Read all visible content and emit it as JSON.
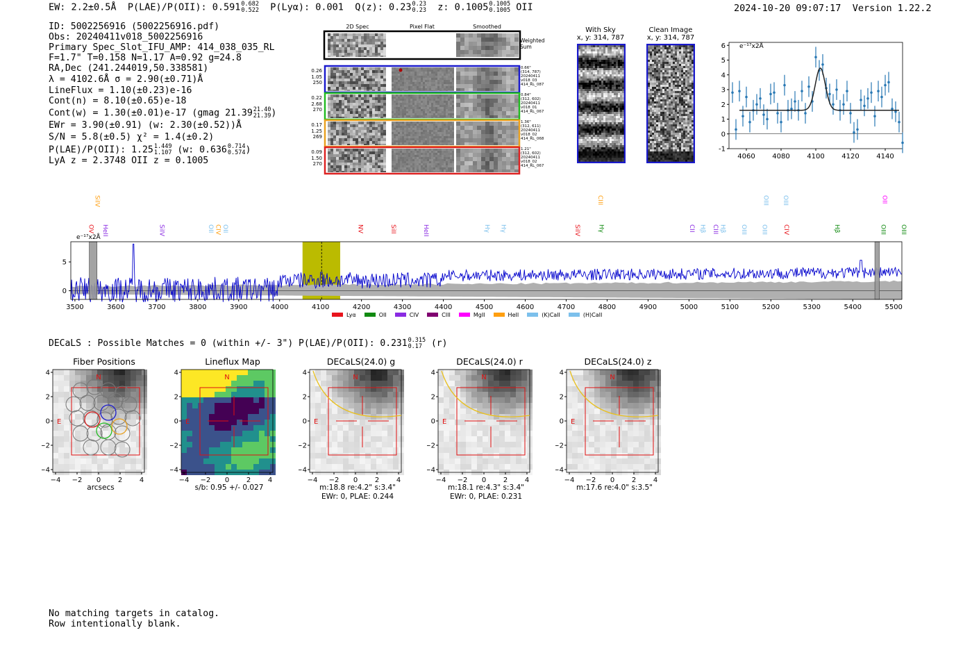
{
  "header": {
    "ew": "EW: 2.2±0.5Å",
    "plae_label": "P(LAE)/P(OII):",
    "plae": "0.591",
    "plae_hi": "0.682",
    "plae_lo": "0.522",
    "plya": "P(Lyα): 0.001",
    "q_label": "Q(z):",
    "q": "0.23",
    "q_hi": "0.23",
    "q_lo": "0.23",
    "z_label": "z:",
    "z": "0.1005",
    "z_hi": "0.1005",
    "z_lo": "0.1005",
    "z_line": "OII",
    "datetime": "2024-10-20 09:07:17",
    "version": "Version 1.22.2"
  },
  "info": {
    "id": "ID: 5002256916 (5002256916.pdf)",
    "obs": "Obs: 20240411v018_5002256916",
    "primary": "Primary Spec_Slot_IFU_AMP: 414_038_035_RL",
    "params": "F=1.7\"  T=0.158  N=1.17  A=0.92  g=24.8",
    "radec": "RA,Dec (241.244019,50.338581)",
    "lambda": "λ = 4102.6Å   σ = 2.90(±0.71)Å",
    "lineflux": "LineFlux = 1.10(±0.23)e-16",
    "contn": "Cont(n) = 8.10(±0.65)e-18",
    "contw": "Cont(w) = 1.30(±0.01)e-17 (gmag 21.39",
    "contw_hi": "21.40",
    "contw_lo": "21.39",
    "contw_end": ")",
    "ewr": "EWr = 3.90(±0.91) (w: 2.30(±0.52))Å",
    "sn": "S/N = 5.8(±0.5)  χ² = 1.4(±0.2)",
    "plae2": "P(LAE)/P(OII): 1.25",
    "plae2_hi": "1.449",
    "plae2_lo": "1.107",
    "plae2_w": "(w: 0.636",
    "plae2_w_hi": "0.714",
    "plae2_w_lo": "0.574",
    "plae2_end": ")",
    "lyaz": "LyA z = 2.3748   OII z = 0.1005"
  },
  "cutouts": {
    "col1": "2D Spec",
    "col2": "Pixel Flat",
    "col3": "Smoothed",
    "weighted": "Weighted Sum",
    "rows": [
      {
        "color": "#1a1acc",
        "left": [
          "0.26",
          "1.05",
          "250"
        ],
        "right": [
          "0.66\"",
          "(314, 787)",
          "20240411",
          "v018_03",
          "414_RL_087"
        ]
      },
      {
        "color": "#22bb22",
        "left": [
          "0.22",
          "2.68",
          "270"
        ],
        "right": [
          "0.84\"",
          "(312, 602)",
          "20240411",
          "v018_01",
          "414_RL_067"
        ]
      },
      {
        "color": "#e8a020",
        "left": [
          "0.17",
          "1.25",
          "269"
        ],
        "right": [
          "1.36\"",
          "(312, 611)",
          "20240411",
          "v018_02",
          "414_RL_068"
        ]
      },
      {
        "color": "#dd2222",
        "left": [
          "0.09",
          "1.50",
          "270"
        ],
        "right": [
          "1.21\"",
          "(312, 602)",
          "20240411",
          "v018_02",
          "414_RL_067"
        ]
      }
    ]
  },
  "sky": {
    "with_sky_title": "With Sky",
    "with_sky_xy": "x, y: 314, 787",
    "clean_title": "Clean Image",
    "clean_xy": "x, y: 314, 787"
  },
  "zoom_chart": {
    "ylabel": "e⁻¹⁷x2Å",
    "yticks": [
      "-1",
      "0",
      "1",
      "2",
      "3",
      "4",
      "5",
      "6"
    ],
    "xticks": [
      "4060",
      "4080",
      "4100",
      "4120",
      "4140"
    ]
  },
  "full_spectrum": {
    "ylabel": "e⁻¹⁷x2Å",
    "yticks": [
      "0",
      "5"
    ],
    "xticks": [
      "3500",
      "3600",
      "3700",
      "3800",
      "3900",
      "4000",
      "4100",
      "4200",
      "4300",
      "4400",
      "4500",
      "4600",
      "4700",
      "4800",
      "4900",
      "5000",
      "5100",
      "5200",
      "5300",
      "5400",
      "5500"
    ],
    "legend": [
      {
        "label": "Lyα",
        "color": "#e8141c"
      },
      {
        "label": "OII",
        "color": "#108a10"
      },
      {
        "label": "CIV",
        "color": "#8a2be2"
      },
      {
        "label": "CIII",
        "color": "#800070"
      },
      {
        "label": "MgII",
        "color": "#ff00ff"
      },
      {
        "label": "HeII",
        "color": "#ff9f10"
      },
      {
        "label": "(K)CaII",
        "color": "#7cc0ec"
      },
      {
        "label": "(H)CaII",
        "color": "#7cc0ec"
      }
    ],
    "line_labels": [
      {
        "text": "OVI",
        "color": "#e8141c",
        "w": 3530,
        "row": 2
      },
      {
        "text": "HeII",
        "color": "#8a2be2",
        "w": 3565,
        "row": 2
      },
      {
        "text": "SiIV",
        "color": "#ff9f10",
        "w": 3545,
        "row": 0
      },
      {
        "text": "SiIV",
        "color": "#8a2be2",
        "w": 3703,
        "row": 2
      },
      {
        "text": "OII",
        "color": "#7cc0ec",
        "w": 3822,
        "row": 2
      },
      {
        "text": "CIV",
        "color": "#ff9f10",
        "w": 3840,
        "row": 2
      },
      {
        "text": "OII",
        "color": "#7cc0ec",
        "w": 3858,
        "row": 2
      },
      {
        "text": "NV",
        "color": "#e8141c",
        "w": 4188,
        "row": 2
      },
      {
        "text": "SiII",
        "color": "#e8141c",
        "w": 4268,
        "row": 2
      },
      {
        "text": "HeII",
        "color": "#8a2be2",
        "w": 4348,
        "row": 2
      },
      {
        "text": "Hγ",
        "color": "#7cc0ec",
        "w": 4497,
        "row": 2
      },
      {
        "text": "Hγ",
        "color": "#7cc0ec",
        "w": 4537,
        "row": 2
      },
      {
        "text": "SiIV",
        "color": "#e8141c",
        "w": 4718,
        "row": 2
      },
      {
        "text": "CIII",
        "color": "#ff9f10",
        "w": 4774,
        "row": 0
      },
      {
        "text": "Hγ",
        "color": "#108a10",
        "w": 4776,
        "row": 2
      },
      {
        "text": "CII",
        "color": "#8a2be2",
        "w": 4998,
        "row": 2
      },
      {
        "text": "Hβ",
        "color": "#7cc0ec",
        "w": 5024,
        "row": 2
      },
      {
        "text": "CIII",
        "color": "#8a2be2",
        "w": 5055,
        "row": 2
      },
      {
        "text": "Hβ",
        "color": "#7cc0ec",
        "w": 5073,
        "row": 2
      },
      {
        "text": "OIII",
        "color": "#7cc0ec",
        "w": 5125,
        "row": 2
      },
      {
        "text": "OIII",
        "color": "#7cc0ec",
        "w": 5178,
        "row": 0
      },
      {
        "text": "OIII",
        "color": "#7cc0ec",
        "w": 5175,
        "row": 2
      },
      {
        "text": "OIII",
        "color": "#7cc0ec",
        "w": 5227,
        "row": 0
      },
      {
        "text": "CIV",
        "color": "#e8141c",
        "w": 5228,
        "row": 2
      },
      {
        "text": "Hβ",
        "color": "#108a10",
        "w": 5352,
        "row": 2
      },
      {
        "text": "OII",
        "color": "#ff00ff",
        "w": 5468,
        "row": 0
      },
      {
        "text": "OIII",
        "color": "#108a10",
        "w": 5465,
        "row": 2
      },
      {
        "text": "OIII",
        "color": "#108a10",
        "w": 5515,
        "row": 2
      }
    ]
  },
  "decals": {
    "heading_a": "DECaLS : Possible Matches = 0 (within +/- 3\")  P(LAE)/P(OII): 0.231",
    "heading_hi": "0.315",
    "heading_lo": "0.17",
    "heading_b": "(r)",
    "panels": [
      {
        "title": "Fiber Positions",
        "cap1": "arcsecs",
        "cap2": ""
      },
      {
        "title": "Lineflux Map",
        "cap1": "s/b: 0.95 +/- 0.027",
        "cap2": ""
      },
      {
        "title": "DECaLS(24.0) g",
        "cap1": "m:18.8  re:4.2\"  s:3.4\"",
        "cap2": "EWr: 0, PLAE: 0.244"
      },
      {
        "title": "DECaLS(24.0) r",
        "cap1": "m:18.1  re:4.3\"  s:3.4\"",
        "cap2": "EWr: 0, PLAE: 0.231"
      },
      {
        "title": "DECaLS(24.0) z",
        "cap1": "m:17.6  re:4.0\"  s:3.5\"",
        "cap2": ""
      }
    ],
    "north": "N",
    "east": "E",
    "ticks": [
      "-4",
      "-2",
      "0",
      "2",
      "4"
    ]
  },
  "footer": {
    "line1": "No matching targets in catalog.",
    "line2": "Row intentionally blank."
  },
  "chart_data": [
    {
      "type": "scatter",
      "title": "",
      "ylabel": "e⁻¹⁷x2Å",
      "xlim": [
        4050,
        4150
      ],
      "ylim": [
        -1,
        6.2
      ],
      "x": [
        4052,
        4054,
        4056,
        4058,
        4060,
        4062,
        4064,
        4066,
        4068,
        4070,
        4072,
        4074,
        4076,
        4078,
        4080,
        4082,
        4084,
        4086,
        4088,
        4090,
        4092,
        4094,
        4096,
        4098,
        4100,
        4102,
        4104,
        4106,
        4108,
        4110,
        4112,
        4114,
        4116,
        4118,
        4120,
        4122,
        4124,
        4126,
        4128,
        4130,
        4132,
        4134,
        4136,
        4138,
        4140,
        4142,
        4144,
        4146,
        4148,
        4150
      ],
      "y": [
        2.8,
        0.3,
        2.9,
        1.2,
        2.5,
        0.8,
        1.6,
        2.0,
        2.4,
        1.3,
        1.0,
        2.7,
        2.8,
        1.4,
        0.8,
        3.3,
        1.6,
        1.7,
        2.2,
        1.6,
        2.9,
        1.4,
        3.2,
        2.2,
        5.2,
        4.3,
        4.7,
        3.1,
        2.7,
        2.0,
        3.0,
        1.6,
        2.0,
        2.9,
        1.4,
        0.1,
        0.3,
        2.3,
        1.9,
        2.4,
        2.8,
        1.2,
        2.9,
        2.5,
        3.3,
        3.5,
        1.7,
        1.5,
        0.8,
        -0.6
      ],
      "err": [
        0.7,
        0.7,
        0.7,
        0.7,
        0.7,
        0.7,
        0.7,
        0.7,
        0.7,
        0.7,
        0.7,
        0.7,
        0.7,
        0.7,
        0.7,
        0.7,
        0.7,
        0.7,
        0.7,
        0.7,
        0.7,
        0.7,
        0.7,
        0.7,
        0.7,
        0.7,
        0.7,
        0.7,
        0.7,
        0.7,
        0.7,
        0.7,
        0.7,
        0.7,
        0.7,
        0.7,
        0.7,
        0.7,
        0.7,
        0.7,
        0.7,
        0.7,
        0.7,
        0.7,
        0.7,
        0.7,
        0.7,
        0.7,
        0.7,
        0.7
      ],
      "model": {
        "continuum": 1.6,
        "center": 4102.6,
        "sigma": 2.9,
        "peak": 4.4,
        "range": [
          4056,
          4148
        ]
      },
      "point_color": "#2878b4"
    },
    {
      "type": "line",
      "title": "",
      "ylabel": "e⁻¹⁷x2Å",
      "xlim": [
        3490,
        5520
      ],
      "ylim": [
        -1.5,
        8.5
      ],
      "grid": false,
      "series": [
        {
          "role": "flux",
          "color": "#0000cc"
        },
        {
          "role": "error",
          "color": "#b0b0b0"
        }
      ],
      "highlight_band": [
        4056,
        4148
      ],
      "highlight_center": 4102.6,
      "highlight_color": "#bbbb00",
      "masked_regions": [
        [
          3535,
          3554
        ],
        [
          5454,
          5465
        ]
      ],
      "features": [
        {
          "x": 3643,
          "y": 8.1
        },
        {
          "x": 4102,
          "y": 3.2
        },
        {
          "x": 5420,
          "y": 5.3
        }
      ]
    }
  ]
}
